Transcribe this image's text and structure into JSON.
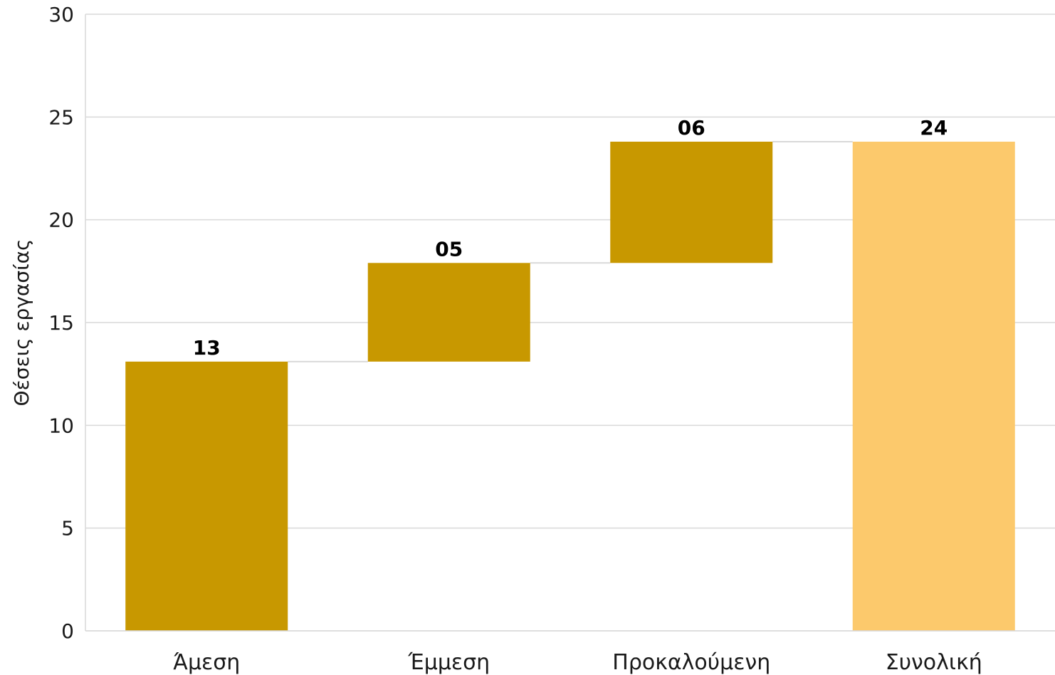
{
  "chart_data": {
    "type": "bar",
    "subtype": "waterfall",
    "ylabel": "Θέσεις εργασίας",
    "xlabel": "",
    "ylim": [
      0,
      30
    ],
    "yticks": [
      0,
      5,
      10,
      15,
      20,
      25,
      30
    ],
    "grid": true,
    "legend": "none",
    "categories": [
      "Άμεση",
      "Έμμεση",
      "Προκαλούμενη",
      "Συνολική"
    ],
    "bars": [
      {
        "label": "Άμεση",
        "base": 0,
        "value": 13.1,
        "display": "13",
        "kind": "increment"
      },
      {
        "label": "Έμμεση",
        "base": 13.1,
        "value": 4.8,
        "display": "05",
        "kind": "increment"
      },
      {
        "label": "Προκαλούμενη",
        "base": 17.9,
        "value": 5.9,
        "display": "06",
        "kind": "increment"
      },
      {
        "label": "Συνολική",
        "base": 0,
        "value": 23.8,
        "display": "24",
        "kind": "total"
      }
    ],
    "colors": {
      "increment": "#C89800",
      "total": "#FCC96C",
      "grid": "#d9d9d9",
      "connector": "#d9d9d9"
    }
  }
}
